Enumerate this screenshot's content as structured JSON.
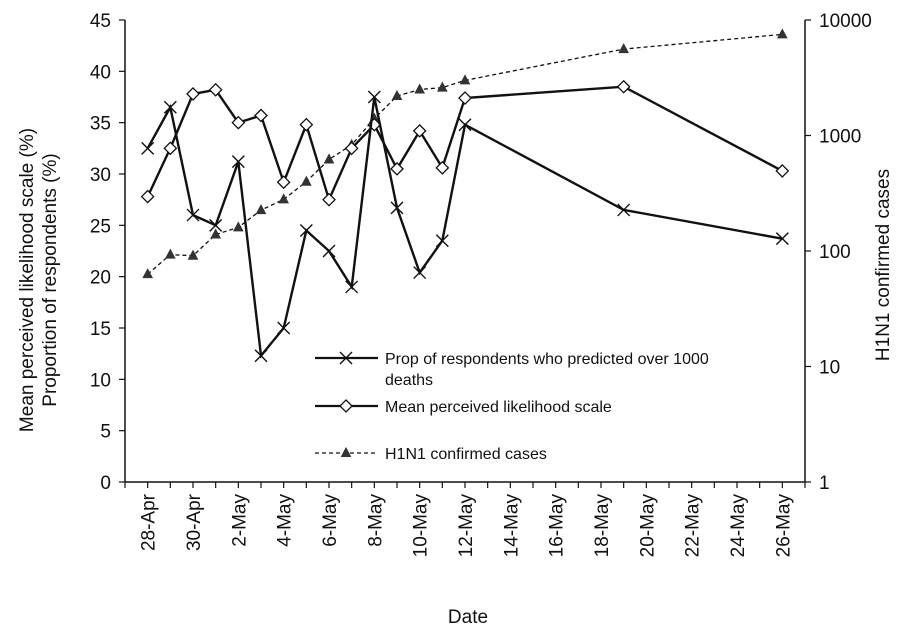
{
  "chart_data": {
    "type": "line",
    "xlabel": "Date",
    "ylabel_left_lines": [
      "Mean perceived likelihood scale (%)",
      "Proportion of respondents (%)"
    ],
    "ylabel_right": "H1N1  confirmed cases",
    "x_axis": {
      "range": [
        "2009-04-27",
        "2009-05-27"
      ],
      "tick_labels": [
        "28-Apr",
        "30-Apr",
        "2-May",
        "4-May",
        "6-May",
        "8-May",
        "10-May",
        "12-May",
        "14-May",
        "16-May",
        "18-May",
        "20-May",
        "22-May",
        "24-May",
        "26-May"
      ],
      "tick_dates": [
        "2009-04-28",
        "2009-04-30",
        "2009-05-02",
        "2009-05-04",
        "2009-05-06",
        "2009-05-08",
        "2009-05-10",
        "2009-05-12",
        "2009-05-14",
        "2009-05-16",
        "2009-05-18",
        "2009-05-20",
        "2009-05-22",
        "2009-05-24",
        "2009-05-26"
      ]
    },
    "y_left": {
      "range": [
        0,
        45
      ],
      "tick_labels": [
        "0",
        "5",
        "10",
        "15",
        "20",
        "25",
        "30",
        "35",
        "40",
        "45"
      ]
    },
    "y_right": {
      "scale": "log",
      "range": [
        1,
        10000
      ],
      "tick_labels": [
        "1",
        "10",
        "100",
        "1000",
        "10000"
      ]
    },
    "grid": false,
    "legend_position": "center-bottom",
    "series": [
      {
        "name": "Prop of respondents who predicted over 1000 deaths",
        "legend_lines": [
          "Prop of respondents who predicted over 1000",
          "deaths"
        ],
        "axis": "left",
        "marker": "x",
        "line_style": "solid",
        "color": "#111111",
        "points": [
          [
            "2009-04-28",
            32.5
          ],
          [
            "2009-04-29",
            36.5
          ],
          [
            "2009-04-30",
            26.0
          ],
          [
            "2009-05-01",
            25.0
          ],
          [
            "2009-05-02",
            31.2
          ],
          [
            "2009-05-03",
            12.3
          ],
          [
            "2009-05-04",
            15.0
          ],
          [
            "2009-05-05",
            24.5
          ],
          [
            "2009-05-06",
            22.5
          ],
          [
            "2009-05-07",
            19.0
          ],
          [
            "2009-05-08",
            37.5
          ],
          [
            "2009-05-09",
            26.7
          ],
          [
            "2009-05-10",
            20.4
          ],
          [
            "2009-05-11",
            23.5
          ],
          [
            "2009-05-12",
            34.8
          ],
          [
            "2009-05-19",
            26.5
          ],
          [
            "2009-05-26",
            23.7
          ]
        ]
      },
      {
        "name": "Mean perceived likelihood scale",
        "axis": "left",
        "marker": "diamond",
        "line_style": "solid",
        "color": "#111111",
        "points": [
          [
            "2009-04-28",
            27.8
          ],
          [
            "2009-04-29",
            32.5
          ],
          [
            "2009-04-30",
            37.8
          ],
          [
            "2009-05-01",
            38.2
          ],
          [
            "2009-05-02",
            35.0
          ],
          [
            "2009-05-03",
            35.7
          ],
          [
            "2009-05-04",
            29.2
          ],
          [
            "2009-05-05",
            34.8
          ],
          [
            "2009-05-06",
            27.5
          ],
          [
            "2009-05-07",
            32.5
          ],
          [
            "2009-05-08",
            34.8
          ],
          [
            "2009-05-09",
            30.5
          ],
          [
            "2009-05-10",
            34.2
          ],
          [
            "2009-05-11",
            30.6
          ],
          [
            "2009-05-12",
            37.4
          ],
          [
            "2009-05-19",
            38.5
          ],
          [
            "2009-05-26",
            30.3
          ]
        ]
      },
      {
        "name": "H1N1 confirmed cases",
        "axis": "right",
        "marker": "triangle",
        "line_style": "dashed",
        "color": "#111111",
        "points": [
          [
            "2009-04-28",
            63
          ],
          [
            "2009-04-29",
            93
          ],
          [
            "2009-04-30",
            91
          ],
          [
            "2009-05-01",
            139
          ],
          [
            "2009-05-02",
            160
          ],
          [
            "2009-05-03",
            226
          ],
          [
            "2009-05-04",
            280
          ],
          [
            "2009-05-05",
            398
          ],
          [
            "2009-05-06",
            620
          ],
          [
            "2009-05-07",
            830
          ],
          [
            "2009-05-08",
            1400
          ],
          [
            "2009-05-09",
            2200
          ],
          [
            "2009-05-10",
            2500
          ],
          [
            "2009-05-11",
            2600
          ],
          [
            "2009-05-12",
            3000
          ],
          [
            "2009-05-19",
            5600
          ],
          [
            "2009-05-26",
            7500
          ]
        ]
      }
    ]
  }
}
